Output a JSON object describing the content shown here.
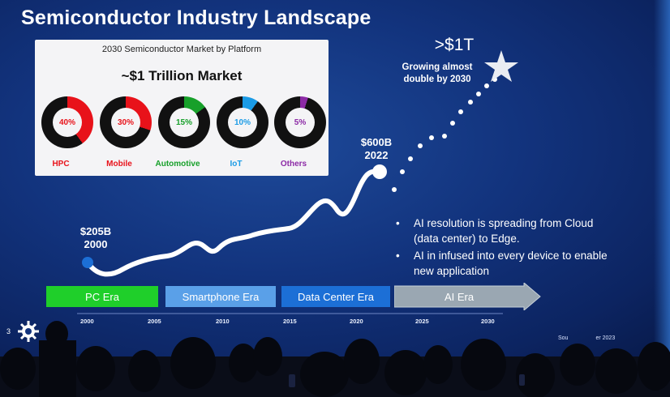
{
  "slide": {
    "title": "Semiconductor Industry Landscape",
    "page_number": "3",
    "source_fragment_start": "Sou",
    "source_fragment_end": "er 2023"
  },
  "market_card": {
    "header": "2030 Semiconductor Market by Platform",
    "headline": "~$1 Trillion Market",
    "platforms": [
      {
        "name": "HPC",
        "percent_label": "40%",
        "share": 40,
        "color": "#e8121a"
      },
      {
        "name": "Mobile",
        "percent_label": "30%",
        "share": 30,
        "color": "#e8121a"
      },
      {
        "name": "Automotive",
        "percent_label": "15%",
        "share": 15,
        "color": "#17a02a"
      },
      {
        "name": "IoT",
        "percent_label": "10%",
        "share": 10,
        "color": "#1a9be6"
      },
      {
        "name": "Others",
        "percent_label": "5%",
        "share": 5,
        "color": "#8c2aa6"
      }
    ]
  },
  "annotations": {
    "start_value": "$205B",
    "start_year": "2000",
    "mid_value": "$600B",
    "mid_year": "2022",
    "target_value": ">$1T",
    "target_note_line1": "Growing almost",
    "target_note_line2": "double by 2030"
  },
  "bullets": [
    {
      "line1": "AI resolution is spreading from Cloud",
      "line2": "(data center) to Edge."
    },
    {
      "line1": "AI in infused into every device to enable",
      "line2": "new application"
    }
  ],
  "eras": [
    {
      "label": "PC Era",
      "color": "#1fcf2a"
    },
    {
      "label": "Smartphone Era",
      "color": "#5aa0e8"
    },
    {
      "label": "Data Center Era",
      "color": "#1c6fd6"
    },
    {
      "label": "AI Era",
      "color": "#9aa7b2"
    }
  ],
  "years": [
    "2000",
    "2005",
    "2010",
    "2015",
    "2020",
    "2025",
    "2030"
  ]
}
